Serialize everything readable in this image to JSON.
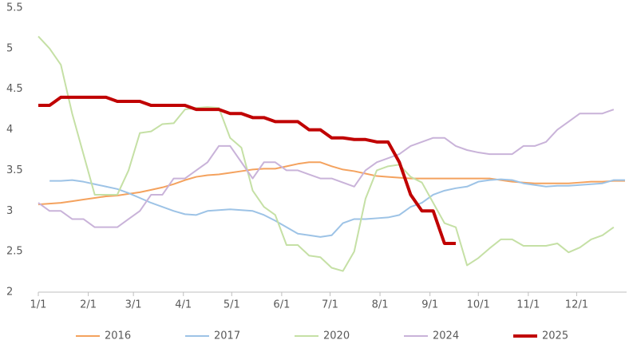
{
  "chart_data": {
    "type": "line",
    "x": [
      0,
      7,
      14,
      21,
      28,
      35,
      42,
      49,
      56,
      63,
      70,
      77,
      84,
      91,
      98,
      105,
      112,
      119,
      126,
      133,
      140,
      147,
      154,
      161,
      168,
      175,
      182,
      189,
      196,
      203,
      210,
      217,
      224,
      231,
      238,
      245,
      252,
      259,
      266,
      273,
      280,
      287,
      294,
      301,
      308,
      315,
      322,
      329,
      336,
      343,
      350,
      357,
      364
    ],
    "xlim": [
      0,
      365
    ],
    "xticks": [
      {
        "value": 0,
        "label": "1/1"
      },
      {
        "value": 31,
        "label": "2/1"
      },
      {
        "value": 59,
        "label": "3/1"
      },
      {
        "value": 90,
        "label": "4/1"
      },
      {
        "value": 120,
        "label": "5/1"
      },
      {
        "value": 151,
        "label": "6/1"
      },
      {
        "value": 181,
        "label": "7/1"
      },
      {
        "value": 212,
        "label": "8/1"
      },
      {
        "value": 243,
        "label": "9/1"
      },
      {
        "value": 273,
        "label": "10/1"
      },
      {
        "value": 304,
        "label": "11/1"
      },
      {
        "value": 334,
        "label": "12/1"
      }
    ],
    "ylim": [
      2,
      5.5
    ],
    "yticks": [
      2,
      2.5,
      3,
      3.5,
      4,
      4.5,
      5,
      5.5
    ],
    "grid": false,
    "legend": "bottom",
    "series": [
      {
        "name": "2016",
        "color": "#f4a25e",
        "width": 2,
        "values": [
          3.08,
          3.09,
          3.1,
          3.12,
          3.14,
          3.16,
          3.18,
          3.19,
          3.21,
          3.23,
          3.26,
          3.29,
          3.33,
          3.38,
          3.42,
          3.44,
          3.45,
          3.47,
          3.49,
          3.51,
          3.52,
          3.52,
          3.55,
          3.58,
          3.6,
          3.6,
          3.55,
          3.51,
          3.49,
          3.46,
          3.43,
          3.42,
          3.41,
          3.4,
          3.4,
          3.4,
          3.4,
          3.4,
          3.4,
          3.4,
          3.4,
          3.38,
          3.36,
          3.35,
          3.34,
          3.34,
          3.34,
          3.34,
          3.35,
          3.36,
          3.36,
          3.37,
          3.37
        ]
      },
      {
        "name": "2017",
        "color": "#9dc3e6",
        "width": 2,
        "values": [
          null,
          3.37,
          3.37,
          3.38,
          3.36,
          3.33,
          3.3,
          3.27,
          3.22,
          3.16,
          3.1,
          3.05,
          3.0,
          2.96,
          2.95,
          3.0,
          3.01,
          3.02,
          3.01,
          3.0,
          2.95,
          2.88,
          2.8,
          2.72,
          2.7,
          2.68,
          2.7,
          2.85,
          2.9,
          2.9,
          2.91,
          2.92,
          2.95,
          3.05,
          3.1,
          3.2,
          3.25,
          3.28,
          3.3,
          3.36,
          3.38,
          3.39,
          3.38,
          3.34,
          3.32,
          3.3,
          3.31,
          3.31,
          3.32,
          3.33,
          3.34,
          3.38,
          3.38
        ]
      },
      {
        "name": "2020",
        "color": "#c5e0a5",
        "width": 2,
        "values": [
          5.15,
          5.0,
          4.8,
          4.2,
          3.7,
          3.2,
          3.2,
          3.2,
          3.5,
          3.96,
          3.98,
          4.07,
          4.08,
          4.25,
          4.27,
          4.28,
          4.27,
          3.9,
          3.78,
          3.25,
          3.05,
          2.95,
          2.58,
          2.58,
          2.45,
          2.43,
          2.3,
          2.26,
          2.5,
          3.15,
          3.5,
          3.55,
          3.57,
          3.42,
          3.35,
          3.1,
          2.85,
          2.8,
          2.33,
          2.42,
          2.54,
          2.65,
          2.65,
          2.57,
          2.57,
          2.57,
          2.6,
          2.49,
          2.55,
          2.65,
          2.7,
          2.8,
          null
        ]
      },
      {
        "name": "2024",
        "color": "#c9b3d9",
        "width": 2,
        "values": [
          3.1,
          3.0,
          3.0,
          2.9,
          2.9,
          2.8,
          2.8,
          2.8,
          2.9,
          3.0,
          3.2,
          3.2,
          3.4,
          3.4,
          3.5,
          3.6,
          3.8,
          3.8,
          3.6,
          3.4,
          3.6,
          3.6,
          3.5,
          3.5,
          3.45,
          3.4,
          3.4,
          3.35,
          3.3,
          3.5,
          3.6,
          3.65,
          3.7,
          3.8,
          3.85,
          3.9,
          3.9,
          3.8,
          3.75,
          3.72,
          3.7,
          3.7,
          3.7,
          3.8,
          3.8,
          3.85,
          4.0,
          4.1,
          4.2,
          4.2,
          4.2,
          4.25,
          null
        ]
      },
      {
        "name": "2025",
        "color": "#c00000",
        "width": 4,
        "values": [
          4.3,
          4.3,
          4.4,
          4.4,
          4.4,
          4.4,
          4.4,
          4.35,
          4.35,
          4.35,
          4.3,
          4.3,
          4.3,
          4.3,
          4.25,
          4.25,
          4.25,
          4.2,
          4.2,
          4.15,
          4.15,
          4.1,
          4.1,
          4.1,
          4.0,
          4.0,
          3.9,
          3.9,
          3.88,
          3.88,
          3.85,
          3.85,
          3.6,
          3.2,
          3.0,
          3.0,
          2.6,
          2.6,
          null,
          null,
          null,
          null,
          null,
          null,
          null,
          null,
          null,
          null,
          null,
          null,
          null,
          null,
          null
        ]
      }
    ]
  }
}
